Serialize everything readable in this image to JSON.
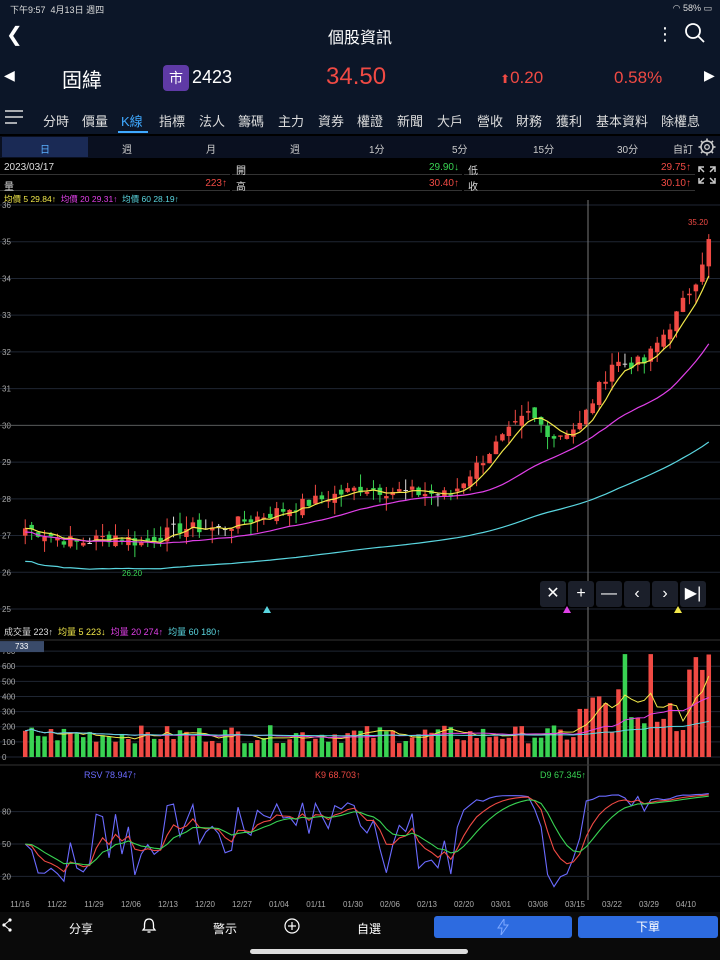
{
  "status": {
    "time": "下午9:57",
    "date": "4月13日 週四",
    "battery": "58%"
  },
  "nav": {
    "title": "個股資訊"
  },
  "quote": {
    "name": "固緯",
    "market_badge": "市",
    "code": "2423",
    "price": "34.50",
    "change": "0.20",
    "change_pct": "0.58%"
  },
  "tabs": [
    "分時",
    "價量",
    "K線",
    "指標",
    "法人",
    "籌碼",
    "主力",
    "資券",
    "權證",
    "新聞",
    "大戶",
    "營收",
    "財務",
    "獲利",
    "基本資料",
    "除權息"
  ],
  "active_tab": "K線",
  "periods": [
    "日",
    "週",
    "月",
    "週",
    "1分",
    "5分",
    "15分",
    "30分",
    "自訂"
  ],
  "info": {
    "date": "2023/03/17",
    "open_label": "開",
    "open": "29.90↓",
    "low_label": "低",
    "low": "29.75↑",
    "vol_label": "量",
    "vol": "223↑",
    "high_label": "高",
    "high": "30.40↑",
    "close_label": "收",
    "close": "30.10↑"
  },
  "ma_legend": {
    "ma5": "均價 5 29.84↑",
    "ma20": "均價 20 29.31↑",
    "ma60": "均價 60 28.19↑",
    "colors": {
      "ma5": "#f2e84a",
      "ma20": "#e040e8",
      "ma60": "#5ad6e0"
    }
  },
  "vol_legend": {
    "label": "成交量 223↑",
    "ma5": "均量 5 223↓",
    "ma20": "均量 20 274↑",
    "ma60": "均量 60 180↑"
  },
  "kd_legend": {
    "rsv": "RSV 78.947↑",
    "k": "K9 68.703↑",
    "d": "D9 67.345↑"
  },
  "chart_data": {
    "type": "candlestick",
    "price_axis": [
      36,
      35,
      34,
      33,
      32,
      31,
      30,
      29,
      28,
      27,
      26,
      25
    ],
    "max_label": "35.20",
    "min_label": "26.20",
    "volume_axis": [
      700,
      600,
      500,
      400,
      300,
      200,
      100,
      0
    ],
    "volume_badge": "733",
    "kd_axis": [
      80,
      50,
      20
    ],
    "x_labels": [
      "11/16",
      "11/22",
      "11/29",
      "12/06",
      "12/13",
      "12/20",
      "12/27",
      "01/04",
      "01/11",
      "01/30",
      "02/06",
      "02/13",
      "02/20",
      "03/01",
      "03/08",
      "03/15",
      "03/22",
      "03/29",
      "04/10"
    ],
    "colors": {
      "up": "#f04a44",
      "down": "#39d353",
      "flat": "#dddddd"
    }
  },
  "bottom": {
    "share": "分享",
    "alert": "警示",
    "watch": "自選",
    "order": "下單"
  }
}
